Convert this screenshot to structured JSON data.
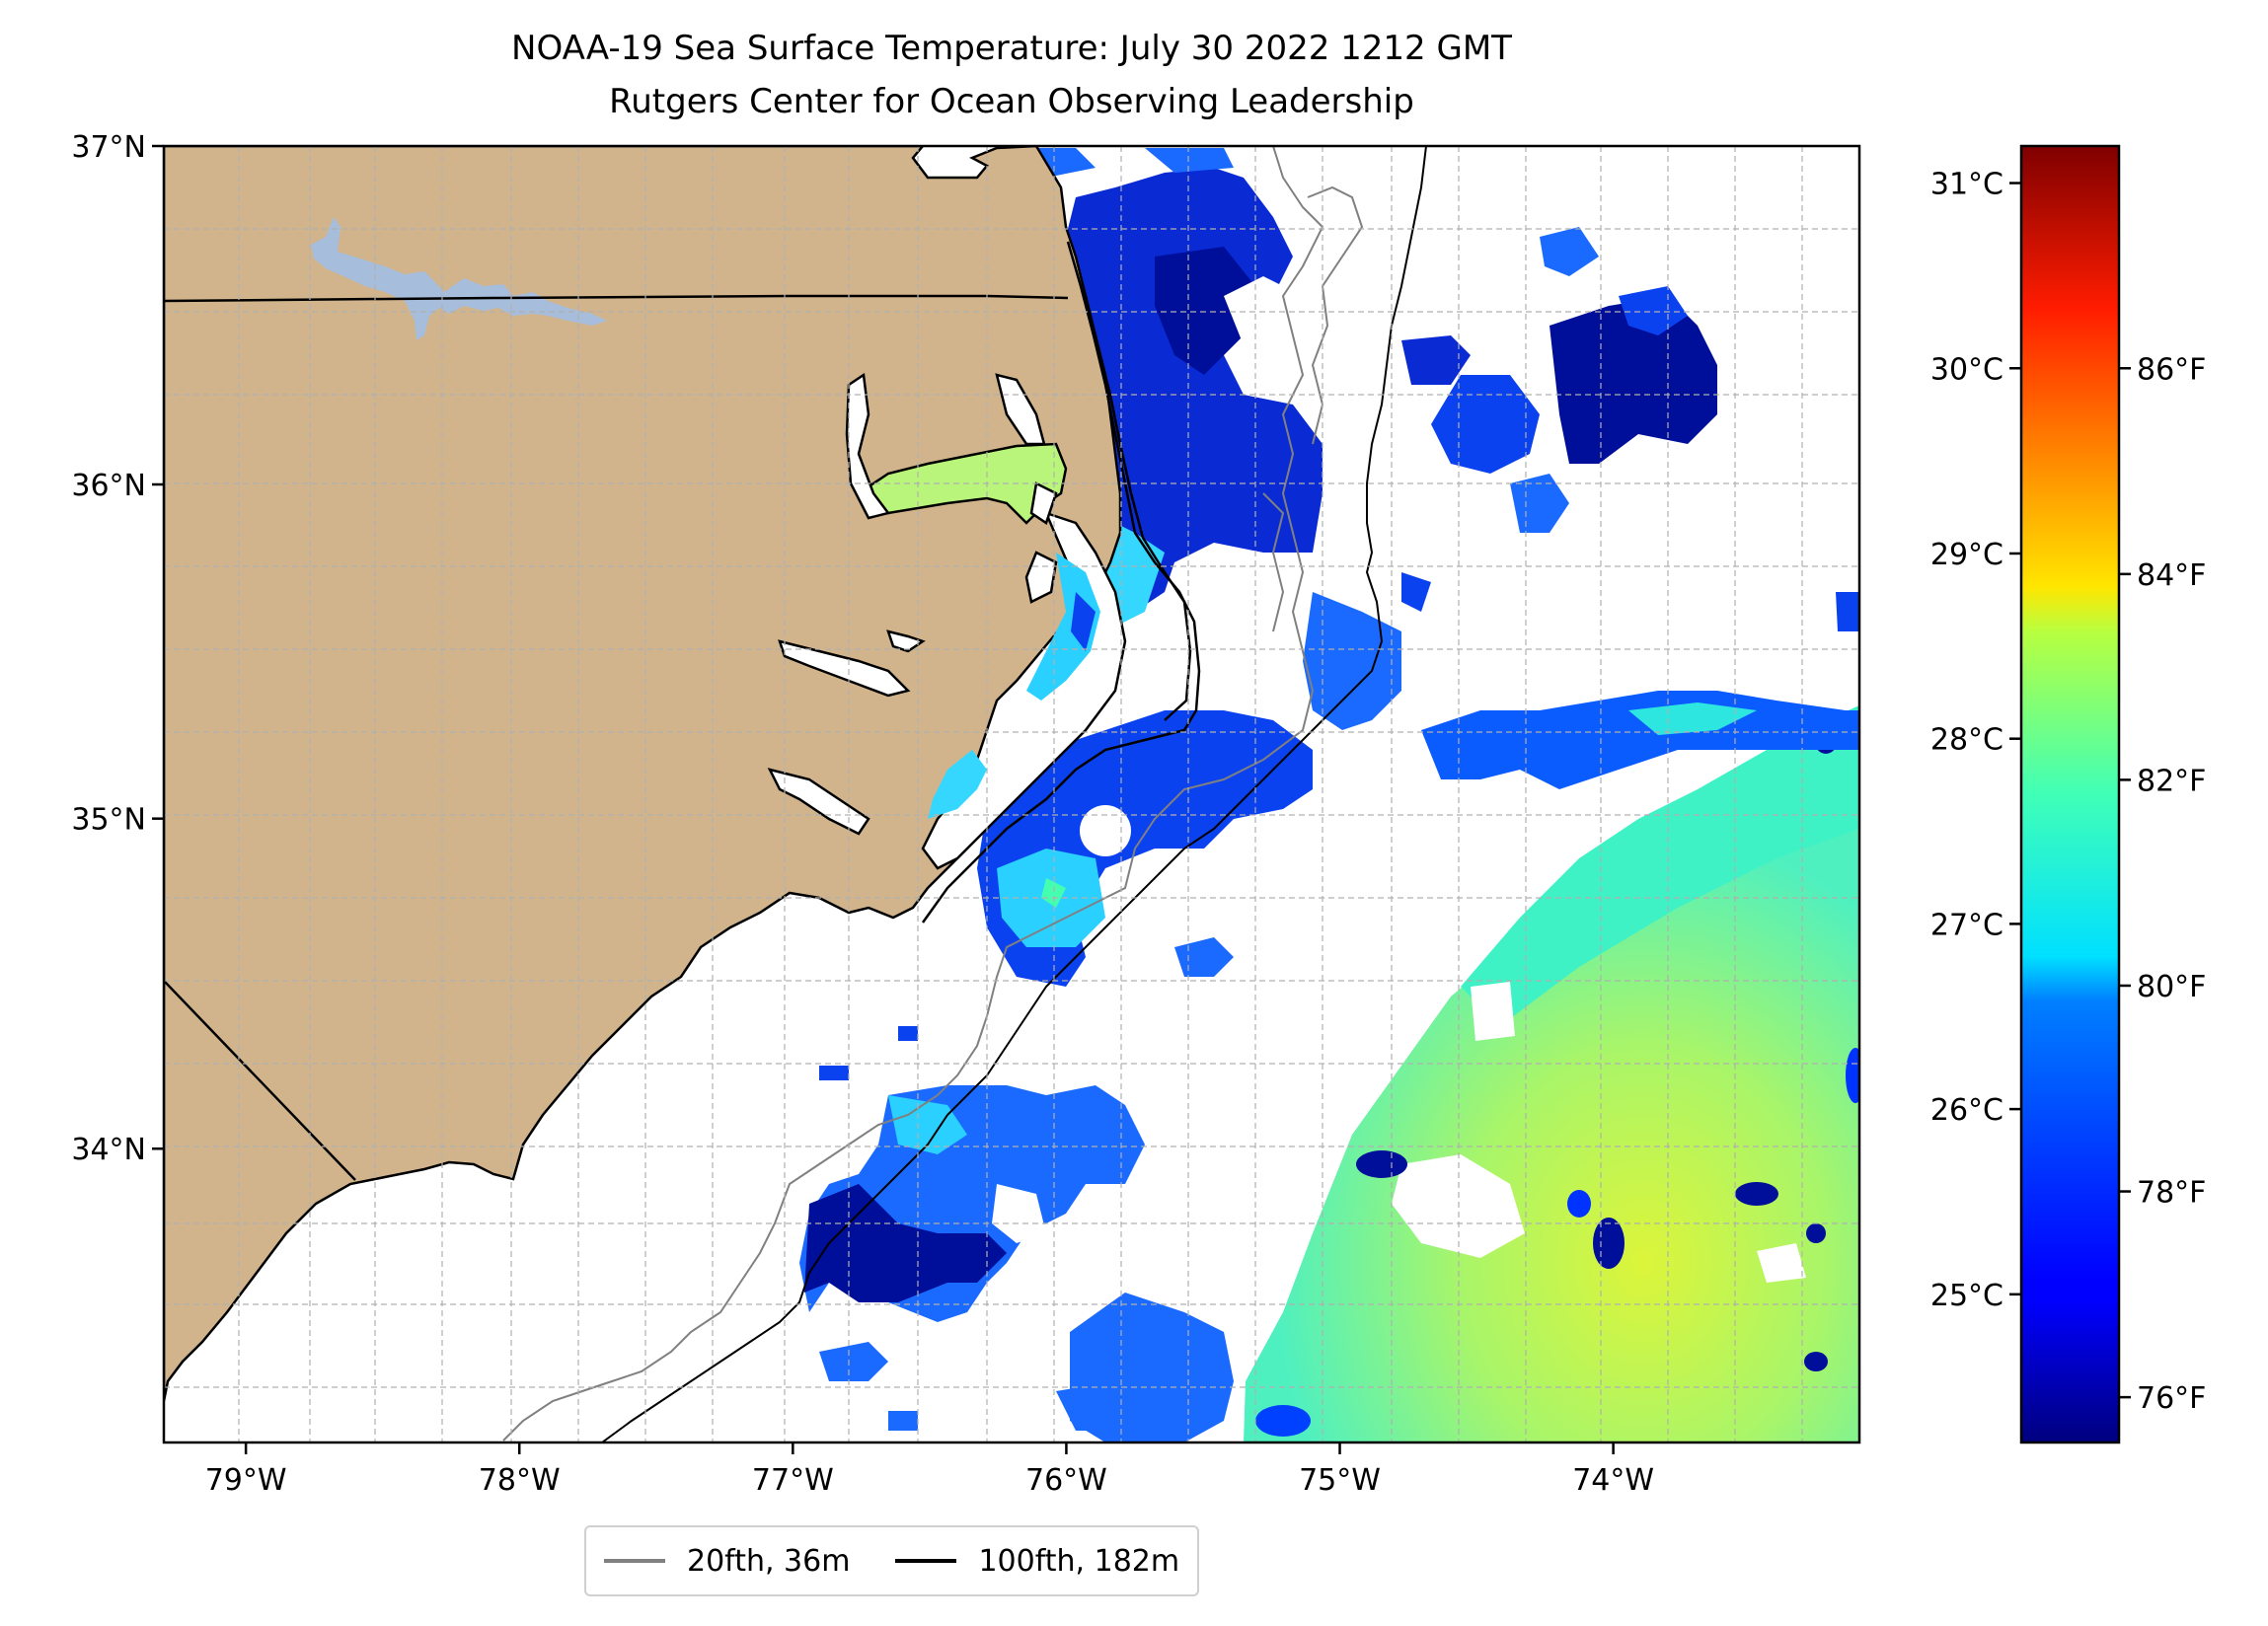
{
  "title": {
    "line1": "NOAA-19 Sea Surface Temperature: July 30 2022 1212 GMT",
    "line2": "Rutgers Center for Ocean Observing Leadership"
  },
  "map": {
    "lon_range": [
      -79.3,
      -73.1
    ],
    "lat_range": [
      33.1,
      37.0
    ],
    "lat_ticks": [
      {
        "value": 37,
        "label": "37°N"
      },
      {
        "value": 36,
        "label": "36°N"
      },
      {
        "value": 35,
        "label": "35°N"
      },
      {
        "value": 34,
        "label": "34°N"
      }
    ],
    "lon_ticks": [
      {
        "value": -79,
        "label": "79°W"
      },
      {
        "value": -78,
        "label": "78°W"
      },
      {
        "value": -77,
        "label": "77°W"
      },
      {
        "value": -76,
        "label": "76°W"
      },
      {
        "value": -75,
        "label": "75°W"
      },
      {
        "value": -74,
        "label": "74°W"
      }
    ],
    "gridlines": "dashed",
    "land_color": "#d2b48c",
    "lake_color": "#a6bddb"
  },
  "colorbar": {
    "colormap": "jet",
    "celsius_ticks": [
      {
        "value": 31,
        "label": "31°C"
      },
      {
        "value": 30,
        "label": "30°C"
      },
      {
        "value": 29,
        "label": "29°C"
      },
      {
        "value": 28,
        "label": "28°C"
      },
      {
        "value": 27,
        "label": "27°C"
      },
      {
        "value": 26,
        "label": "26°C"
      },
      {
        "value": 25,
        "label": "25°C"
      }
    ],
    "fahrenheit_ticks": [
      {
        "value": 86,
        "label": "86°F"
      },
      {
        "value": 84,
        "label": "84°F"
      },
      {
        "value": 82,
        "label": "82°F"
      },
      {
        "value": 80,
        "label": "80°F"
      },
      {
        "value": 78,
        "label": "78°F"
      },
      {
        "value": 76,
        "label": "76°F"
      }
    ]
  },
  "legend": {
    "items": [
      {
        "label": "20fth, 36m",
        "color": "#808080"
      },
      {
        "label": "100fth, 182m",
        "color": "#000000"
      }
    ]
  }
}
